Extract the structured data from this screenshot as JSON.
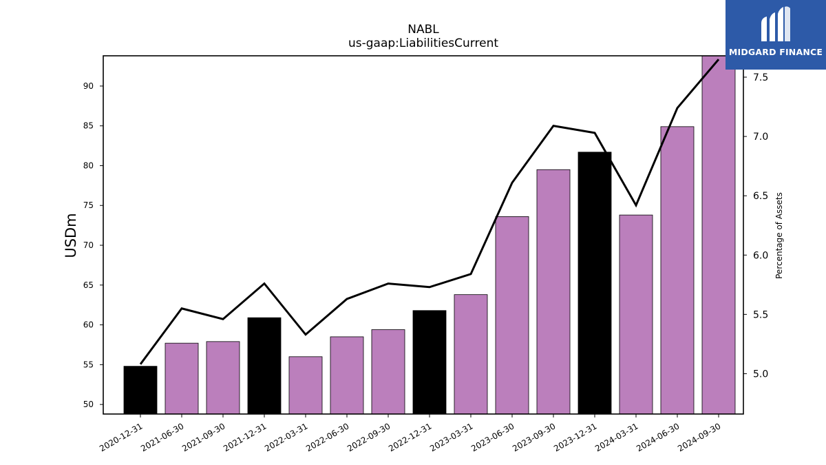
{
  "chart_data": {
    "type": "bar",
    "title": "NABL",
    "subtitle": "us-gaap:LiabilitiesCurrent",
    "ylabel": "USDm",
    "y2label": "Percentage of Assets",
    "categories": [
      "2020-12-31",
      "2021-06-30",
      "2021-09-30",
      "2021-12-31",
      "2022-03-31",
      "2022-06-30",
      "2022-09-30",
      "2022-12-31",
      "2023-03-31",
      "2023-06-30",
      "2023-09-30",
      "2023-12-31",
      "2024-03-31",
      "2024-06-30",
      "2024-09-30"
    ],
    "series": [
      {
        "type": "bar",
        "values": [
          54.8,
          57.7,
          57.9,
          60.9,
          56.0,
          58.5,
          59.4,
          61.8,
          63.8,
          73.6,
          79.5,
          81.7,
          73.8,
          84.9,
          94.0
        ],
        "colors": [
          "#000000",
          "#bb7fbc",
          "#bb7fbc",
          "#000000",
          "#bb7fbc",
          "#bb7fbc",
          "#bb7fbc",
          "#000000",
          "#bb7fbc",
          "#bb7fbc",
          "#bb7fbc",
          "#000000",
          "#bb7fbc",
          "#bb7fbc",
          "#bb7fbc"
        ]
      },
      {
        "type": "line",
        "axis": "right",
        "color": "#000000",
        "values": [
          5.08,
          5.55,
          5.46,
          5.76,
          5.33,
          5.63,
          5.76,
          5.73,
          5.84,
          6.61,
          7.09,
          7.03,
          6.42,
          7.24,
          7.65
        ]
      }
    ],
    "ylim": [
      48.8,
      93.8
    ],
    "y2lim": [
      4.66,
      7.68
    ],
    "yticks": [
      50,
      55,
      60,
      65,
      70,
      75,
      80,
      85,
      90
    ],
    "y2ticks": [
      "5.0",
      "5.5",
      "6.0",
      "6.5",
      "7.0",
      "7.5"
    ],
    "grid": false,
    "legend": "none"
  },
  "logo": {
    "text": "MIDGARD FINANCE"
  }
}
